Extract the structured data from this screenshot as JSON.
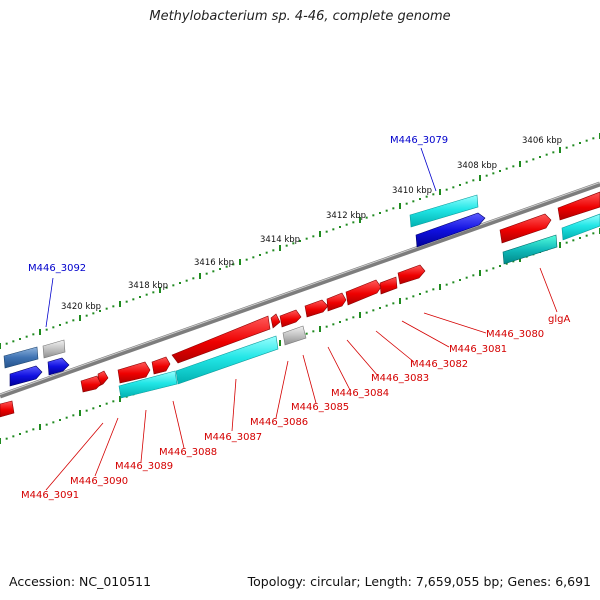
{
  "title": "Methylobacterium sp. 4-46, complete genome",
  "footer": {
    "accession": "Accession: NC_010511",
    "topology": "Topology: circular; Length: 7,659,055 bp; Genes: 6,691"
  },
  "scale_labels": [
    "3406 kbp",
    "3408 kbp",
    "3410 kbp",
    "3412 kbp",
    "3414 kbp",
    "3416 kbp",
    "3418 kbp",
    "3420 kbp"
  ],
  "gene_labels": {
    "top": [
      "M446_3079",
      "M446_3092"
    ],
    "bottom": [
      "glgA",
      "M446_3080",
      "M446_3081",
      "M446_3082",
      "M446_3083",
      "M446_3084",
      "M446_3085",
      "M446_3086",
      "M446_3087",
      "M446_3088",
      "M446_3089",
      "M446_3090",
      "M446_3091"
    ]
  },
  "colors": {
    "cds": "#ff0000",
    "rna": "#00bbbb",
    "cds_reverse": "#0000cc",
    "rna_reverse": "#3b6fb0",
    "pseudo": "#b8b8b8",
    "backbone": "#7a7a7a",
    "tick": "#1f8a1f",
    "label_forward": "#d40000",
    "label_reverse": "#0000cc"
  }
}
